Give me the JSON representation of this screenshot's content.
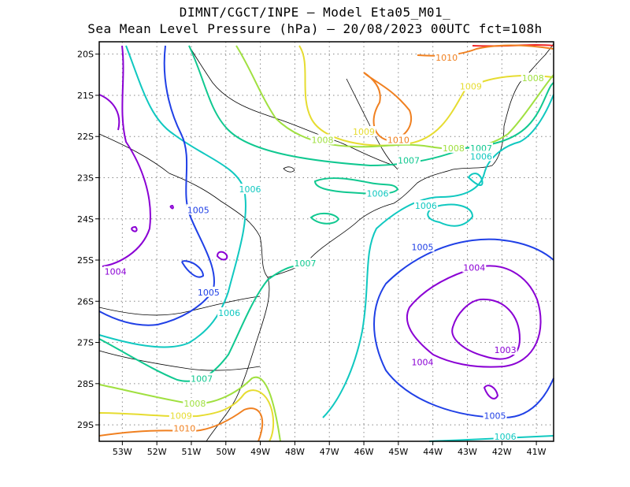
{
  "title": {
    "line1": "DIMNT/CGCT/INPE –  Model Eta05_M01_",
    "line2": "Sea Mean Level Pressure (hPa) – 20/08/2023 00UTC fct=108h"
  },
  "axes": {
    "x_ticks": [
      "53W",
      "52W",
      "51W",
      "50W",
      "49W",
      "48W",
      "47W",
      "46W",
      "45W",
      "44W",
      "43W",
      "42W",
      "41W"
    ],
    "y_ticks": [
      "20S",
      "21S",
      "22S",
      "23S",
      "24S",
      "25S",
      "26S",
      "27S",
      "28S",
      "29S"
    ],
    "lon_range": [
      -53.67,
      -40.5
    ],
    "lat_range": [
      -29.4,
      -19.7
    ],
    "grid": true
  },
  "isobars": [
    {
      "value": 1003,
      "label": "1003",
      "color": "#8a00d4"
    },
    {
      "value": 1004,
      "label": "1004",
      "color": "#8a00d4"
    },
    {
      "value": 1005,
      "label": "1005",
      "color": "#2040e6"
    },
    {
      "value": 1006,
      "label": "1006",
      "color": "#10c8c0"
    },
    {
      "value": 1007,
      "label": "1007",
      "color": "#10c890"
    },
    {
      "value": 1008,
      "label": "1008",
      "color": "#a0e040"
    },
    {
      "value": 1009,
      "label": "1009",
      "color": "#e6dc30"
    },
    {
      "value": 1010,
      "label": "1010",
      "color": "#f08020"
    },
    {
      "value": 1011,
      "label": "",
      "color": "#f02828"
    }
  ],
  "contour_labels": [
    {
      "text": "1010",
      "color": "#f08020",
      "lon": -43.6,
      "lat": -20.1
    },
    {
      "text": "1008",
      "color": "#a0e040",
      "lon": -41.1,
      "lat": -20.6
    },
    {
      "text": "1009",
      "color": "#e6dc30",
      "lon": -42.9,
      "lat": -20.8
    },
    {
      "text": "1008",
      "color": "#a0e040",
      "lon": -47.2,
      "lat": -22.1
    },
    {
      "text": "1009",
      "color": "#e6dc30",
      "lon": -46.0,
      "lat": -21.9
    },
    {
      "text": "1010",
      "color": "#f08020",
      "lon": -45.0,
      "lat": -22.1
    },
    {
      "text": "1007",
      "color": "#10c890",
      "lon": -44.7,
      "lat": -22.6
    },
    {
      "text": "1008",
      "color": "#a0e040",
      "lon": -43.4,
      "lat": -22.3
    },
    {
      "text": "1007",
      "color": "#10c890",
      "lon": -42.6,
      "lat": -22.3
    },
    {
      "text": "1006",
      "color": "#10c8c0",
      "lon": -42.6,
      "lat": -22.5
    },
    {
      "text": "1006",
      "color": "#10c8c0",
      "lon": -49.3,
      "lat": -23.3
    },
    {
      "text": "1006",
      "color": "#10c8c0",
      "lon": -45.6,
      "lat": -23.4
    },
    {
      "text": "1006",
      "color": "#10c8c0",
      "lon": -44.2,
      "lat": -23.7
    },
    {
      "text": "1005",
      "color": "#2040e6",
      "lon": -50.8,
      "lat": -23.8
    },
    {
      "text": "1005",
      "color": "#2040e6",
      "lon": -44.3,
      "lat": -24.7
    },
    {
      "text": "1004",
      "color": "#8a00d4",
      "lon": -42.8,
      "lat": -25.2
    },
    {
      "text": "1004",
      "color": "#8a00d4",
      "lon": -53.2,
      "lat": -25.3
    },
    {
      "text": "1007",
      "color": "#10c890",
      "lon": -47.7,
      "lat": -25.1
    },
    {
      "text": "1005",
      "color": "#2040e6",
      "lon": -50.5,
      "lat": -25.8
    },
    {
      "text": "1006",
      "color": "#10c8c0",
      "lon": -49.9,
      "lat": -26.3
    },
    {
      "text": "1004",
      "color": "#8a00d4",
      "lon": -44.3,
      "lat": -27.5
    },
    {
      "text": "1003",
      "color": "#8a00d4",
      "lon": -41.9,
      "lat": -27.2
    },
    {
      "text": "1007",
      "color": "#10c890",
      "lon": -50.7,
      "lat": -27.9
    },
    {
      "text": "1008",
      "color": "#a0e040",
      "lon": -50.9,
      "lat": -28.5
    },
    {
      "text": "1009",
      "color": "#e6dc30",
      "lon": -51.3,
      "lat": -28.8
    },
    {
      "text": "1010",
      "color": "#f08020",
      "lon": -51.2,
      "lat": -29.1
    },
    {
      "text": "1005",
      "color": "#2040e6",
      "lon": -42.2,
      "lat": -28.8
    },
    {
      "text": "1006",
      "color": "#10c8c0",
      "lon": -41.9,
      "lat": -29.3
    }
  ],
  "chart_data": {
    "type": "contour_map",
    "variable": "Sea Mean Level Pressure (hPa)",
    "levels": [
      1003,
      1004,
      1005,
      1006,
      1007,
      1008,
      1009,
      1010,
      1011
    ],
    "low_centers": [
      {
        "value": 1003,
        "lon": -42.3,
        "lat": -26.6
      },
      {
        "value": 1004,
        "lon": -53.1,
        "lat": -24.2
      }
    ],
    "high_centers": [
      {
        "value": 1010,
        "lon": -45.1,
        "lat": -21.5
      }
    ]
  }
}
